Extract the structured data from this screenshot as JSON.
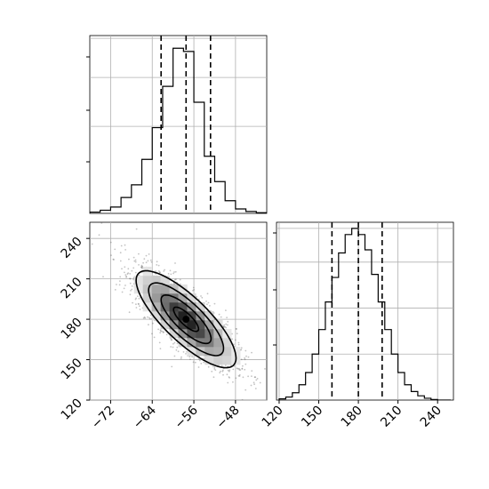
{
  "chart_data": [
    {
      "type": "histogram",
      "panel": "top-left marginal",
      "variable": "x",
      "bin_edges": [
        -76,
        -74,
        -72,
        -70,
        -68,
        -66,
        -64,
        -62,
        -60,
        -58,
        -56,
        -54,
        -52,
        -50,
        -48,
        -46,
        -44,
        -42
      ],
      "counts": [
        2,
        5,
        10,
        25,
        45,
        85,
        135,
        200,
        260,
        255,
        175,
        90,
        50,
        20,
        7,
        3,
        1
      ],
      "quantile_lines": [
        -62.3,
        -57.5,
        -52.8
      ],
      "xlim": [
        -76,
        -42
      ],
      "ylim": [
        0,
        280
      ],
      "show_ticks": false,
      "grid": true
    },
    {
      "type": "histogram",
      "panel": "bottom-right marginal",
      "variable": "y",
      "bin_edges": [
        120,
        125,
        130,
        135,
        140,
        145,
        150,
        155,
        160,
        165,
        170,
        175,
        180,
        185,
        190,
        195,
        200,
        205,
        210,
        215,
        220,
        225,
        230,
        235,
        240,
        245,
        250
      ],
      "counts": [
        2,
        5,
        12,
        25,
        45,
        75,
        115,
        160,
        200,
        240,
        270,
        280,
        270,
        245,
        205,
        160,
        115,
        75,
        45,
        25,
        14,
        7,
        3,
        1,
        0,
        0
      ],
      "quantile_lines": [
        160,
        180,
        198
      ],
      "xlim": [
        118,
        252
      ],
      "ylim": [
        0,
        290
      ],
      "xticks": [
        120,
        150,
        180,
        210,
        240
      ],
      "grid": true
    },
    {
      "type": "2d-histogram-contour",
      "panel": "bottom-left joint",
      "x_mean": -57.5,
      "y_mean": 180,
      "correlation": -0.8,
      "x_sigma": 4.8,
      "y_sigma": 18,
      "xlim": [
        -76,
        -42
      ],
      "ylim": [
        120,
        252
      ],
      "xticks": [
        -72,
        -64,
        -56,
        -48
      ],
      "yticks": [
        120,
        150,
        180,
        210,
        240
      ],
      "contour_sigma_levels": [
        0.5,
        1,
        1.5,
        2
      ],
      "grid": true
    }
  ]
}
